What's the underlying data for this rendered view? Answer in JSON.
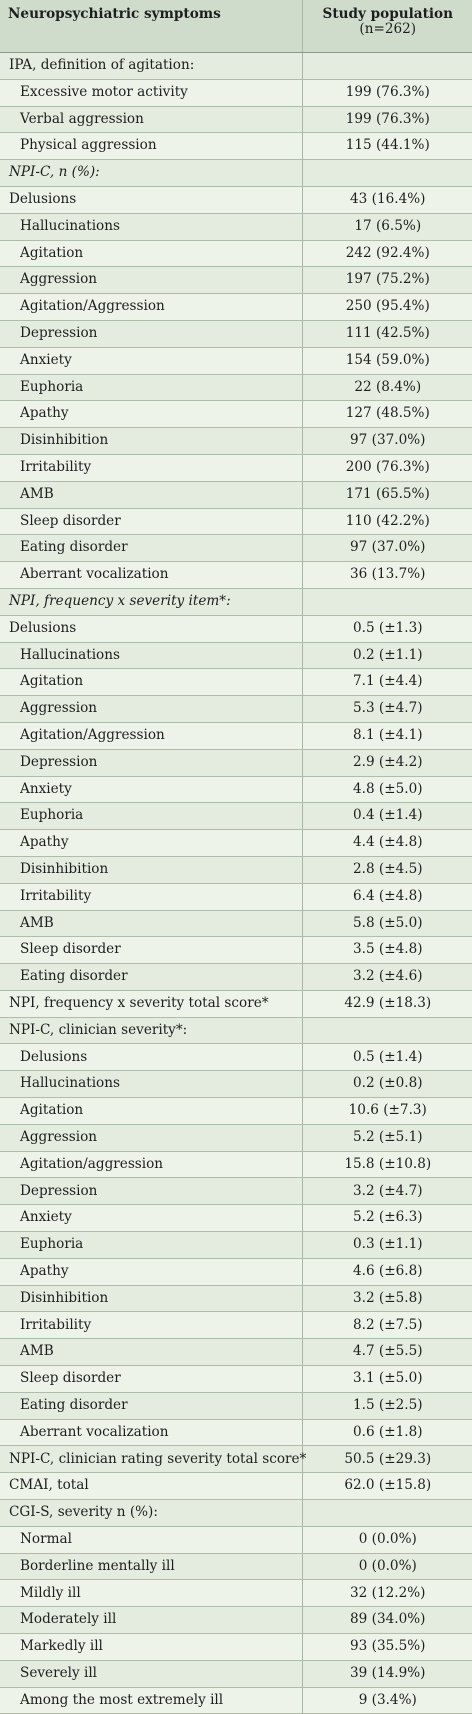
{
  "table": {
    "header": {
      "col1": "Neuropsychiatric symptoms",
      "col2": "Study population",
      "col2_sub": "(n=262)"
    },
    "rows": [
      {
        "label": "IPA, definition of agitation:",
        "value": "",
        "indent": false,
        "italic": false
      },
      {
        "label": "Excessive motor activity",
        "value": "199 (76.3%)",
        "indent": true,
        "italic": false
      },
      {
        "label": "Verbal aggression",
        "value": "199 (76.3%)",
        "indent": true,
        "italic": false
      },
      {
        "label": "Physical aggression",
        "value": "115 (44.1%)",
        "indent": true,
        "italic": false
      },
      {
        "label": "NPI-C, n (%):",
        "value": "",
        "indent": false,
        "italic": true
      },
      {
        "label": "Delusions",
        "value": "43 (16.4%)",
        "indent": false,
        "italic": false
      },
      {
        "label": "Hallucinations",
        "value": "17 (6.5%)",
        "indent": true,
        "italic": false
      },
      {
        "label": "Agitation",
        "value": "242 (92.4%)",
        "indent": true,
        "italic": false
      },
      {
        "label": "Aggression",
        "value": "197 (75.2%)",
        "indent": true,
        "italic": false
      },
      {
        "label": "Agitation/Aggression",
        "value": "250 (95.4%)",
        "indent": true,
        "italic": false
      },
      {
        "label": "Depression",
        "value": "111 (42.5%)",
        "indent": true,
        "italic": false
      },
      {
        "label": "Anxiety",
        "value": "154 (59.0%)",
        "indent": true,
        "italic": false
      },
      {
        "label": "Euphoria",
        "value": "22 (8.4%)",
        "indent": true,
        "italic": false
      },
      {
        "label": "Apathy",
        "value": "127 (48.5%)",
        "indent": true,
        "italic": false
      },
      {
        "label": "Disinhibition",
        "value": "97 (37.0%)",
        "indent": true,
        "italic": false
      },
      {
        "label": "Irritability",
        "value": "200 (76.3%)",
        "indent": true,
        "italic": false
      },
      {
        "label": "AMB",
        "value": "171 (65.5%)",
        "indent": true,
        "italic": false
      },
      {
        "label": "Sleep disorder",
        "value": "110 (42.2%)",
        "indent": true,
        "italic": false
      },
      {
        "label": "Eating disorder",
        "value": "97 (37.0%)",
        "indent": true,
        "italic": false
      },
      {
        "label": "Aberrant vocalization",
        "value": "36 (13.7%)",
        "indent": true,
        "italic": false
      },
      {
        "label": "NPI, frequency x severity item*:",
        "value": "",
        "indent": false,
        "italic": true
      },
      {
        "label": "Delusions",
        "value": "0.5 (±1.3)",
        "indent": false,
        "italic": false
      },
      {
        "label": "Hallucinations",
        "value": "0.2 (±1.1)",
        "indent": true,
        "italic": false
      },
      {
        "label": "Agitation",
        "value": "7.1 (±4.4)",
        "indent": true,
        "italic": false
      },
      {
        "label": "Aggression",
        "value": "5.3 (±4.7)",
        "indent": true,
        "italic": false
      },
      {
        "label": "Agitation/Aggression",
        "value": "8.1 (±4.1)",
        "indent": true,
        "italic": false
      },
      {
        "label": "Depression",
        "value": "2.9 (±4.2)",
        "indent": true,
        "italic": false
      },
      {
        "label": "Anxiety",
        "value": "4.8 (±5.0)",
        "indent": true,
        "italic": false
      },
      {
        "label": "Euphoria",
        "value": "0.4 (±1.4)",
        "indent": true,
        "italic": false
      },
      {
        "label": "Apathy",
        "value": "4.4 (±4.8)",
        "indent": true,
        "italic": false
      },
      {
        "label": "Disinhibition",
        "value": "2.8 (±4.5)",
        "indent": true,
        "italic": false
      },
      {
        "label": "Irritability",
        "value": "6.4 (±4.8)",
        "indent": true,
        "italic": false
      },
      {
        "label": "AMB",
        "value": "5.8 (±5.0)",
        "indent": true,
        "italic": false
      },
      {
        "label": "Sleep disorder",
        "value": "3.5 (±4.8)",
        "indent": true,
        "italic": false
      },
      {
        "label": "Eating disorder",
        "value": "3.2 (±4.6)",
        "indent": true,
        "italic": false
      },
      {
        "label": "NPI, frequency x severity total score*",
        "value": "42.9 (±18.3)",
        "indent": false,
        "italic": false
      },
      {
        "label": "NPI-C, clinician severity*:",
        "value": "",
        "indent": false,
        "italic": false
      },
      {
        "label": "Delusions",
        "value": "0.5 (±1.4)",
        "indent": true,
        "italic": false
      },
      {
        "label": "Hallucinations",
        "value": "0.2 (±0.8)",
        "indent": true,
        "italic": false
      },
      {
        "label": "Agitation",
        "value": "10.6 (±7.3)",
        "indent": true,
        "italic": false
      },
      {
        "label": "Aggression",
        "value": "5.2 (±5.1)",
        "indent": true,
        "italic": false
      },
      {
        "label": "Agitation/aggression",
        "value": "15.8 (±10.8)",
        "indent": true,
        "italic": false
      },
      {
        "label": "Depression",
        "value": "3.2 (±4.7)",
        "indent": true,
        "italic": false
      },
      {
        "label": "Anxiety",
        "value": "5.2 (±6.3)",
        "indent": true,
        "italic": false
      },
      {
        "label": "Euphoria",
        "value": "0.3 (±1.1)",
        "indent": true,
        "italic": false
      },
      {
        "label": "Apathy",
        "value": "4.6 (±6.8)",
        "indent": true,
        "italic": false
      },
      {
        "label": "Disinhibition",
        "value": "3.2 (±5.8)",
        "indent": true,
        "italic": false
      },
      {
        "label": "Irritability",
        "value": "8.2 (±7.5)",
        "indent": true,
        "italic": false
      },
      {
        "label": "AMB",
        "value": "4.7 (±5.5)",
        "indent": true,
        "italic": false
      },
      {
        "label": "Sleep disorder",
        "value": "3.1 (±5.0)",
        "indent": true,
        "italic": false
      },
      {
        "label": "Eating disorder",
        "value": "1.5 (±2.5)",
        "indent": true,
        "italic": false
      },
      {
        "label": "Aberrant vocalization",
        "value": "0.6 (±1.8)",
        "indent": true,
        "italic": false
      },
      {
        "label": "NPI-C, clinician rating severity total score*",
        "value": "50.5 (±29.3)",
        "indent": false,
        "italic": false
      },
      {
        "label": "CMAI, total",
        "value": "62.0 (±15.8)",
        "indent": false,
        "italic": false
      },
      {
        "label": "CGI-S, severity n (%):",
        "value": "",
        "indent": false,
        "italic": false
      },
      {
        "label": "Normal",
        "value": "0 (0.0%)",
        "indent": true,
        "italic": false
      },
      {
        "label": "Borderline mentally ill",
        "value": "0 (0.0%)",
        "indent": true,
        "italic": false
      },
      {
        "label": "Mildly ill",
        "value": "32 (12.2%)",
        "indent": true,
        "italic": false
      },
      {
        "label": "Moderately ill",
        "value": "89 (34.0%)",
        "indent": true,
        "italic": false
      },
      {
        "label": "Markedly ill",
        "value": "93 (35.5%)",
        "indent": true,
        "italic": false
      },
      {
        "label": "Severely ill",
        "value": "39 (14.9%)",
        "indent": true,
        "italic": false
      },
      {
        "label": "Among the most extremely ill",
        "value": "9 (3.4%)",
        "indent": true,
        "italic": false
      }
    ]
  },
  "colors": {
    "header_bg": "#cfdccb",
    "row_bg": "#e4ecdf",
    "row_alt_bg": "#eef3ea",
    "grid_line": "#aebcaa"
  }
}
